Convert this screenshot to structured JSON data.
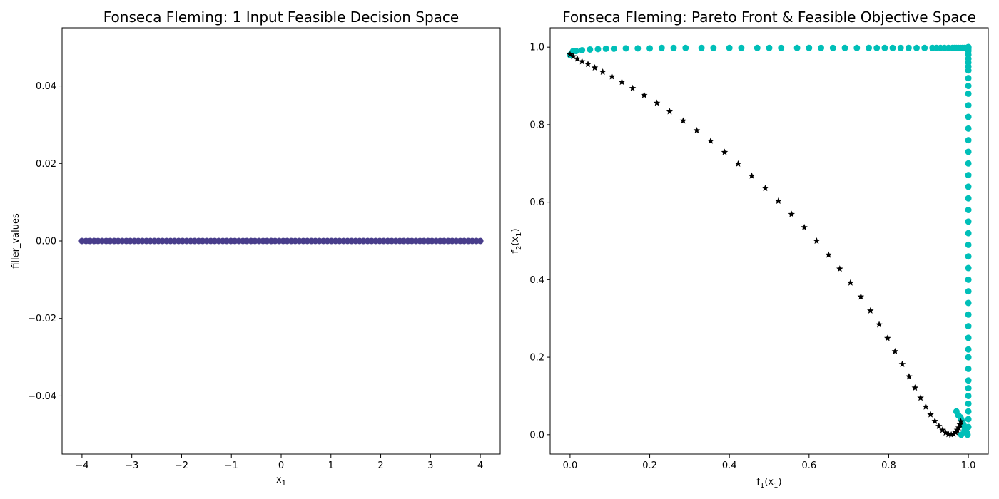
{
  "chart_data": [
    {
      "type": "scatter",
      "title": "Fonseca Fleming: 1 Input Feasible Decision Space",
      "xlabel": "x",
      "xlabel_sub": "1",
      "ylabel": "filler_values",
      "xlim": [
        -4.4,
        4.4
      ],
      "ylim": [
        -0.055,
        0.055
      ],
      "xticks": [
        -4,
        -3,
        -2,
        -1,
        0,
        1,
        2,
        3,
        4
      ],
      "xtick_labels": [
        "−4",
        "−3",
        "−2",
        "−1",
        "0",
        "1",
        "2",
        "3",
        "4"
      ],
      "yticks": [
        0.04,
        0.02,
        0.0,
        -0.02,
        -0.04
      ],
      "ytick_labels": [
        "0.04",
        "0.02",
        "0.00",
        "−0.02",
        "−0.04"
      ],
      "grid": false,
      "series": [
        {
          "color": "#483d8b",
          "marker": "circle",
          "x_range": [
            -4,
            4
          ],
          "count": 100,
          "y_value": 0
        }
      ]
    },
    {
      "type": "scatter",
      "title": "Fonseca Fleming: Pareto Front & Feasible Objective Space",
      "xlabel": "f",
      "xlabel_sub": "1",
      "xlabel_arg": "(x",
      "xlabel_argsub": "1",
      "xlabel_end": ")",
      "ylabel": "f",
      "ylabel_sub": "2",
      "ylabel_arg": "(x",
      "ylabel_argsub": "1",
      "ylabel_end": ")",
      "xlim": [
        -0.05,
        1.05
      ],
      "ylim": [
        -0.05,
        1.05
      ],
      "xticks": [
        0.0,
        0.2,
        0.4,
        0.6,
        0.8,
        1.0
      ],
      "xtick_labels": [
        "0.0",
        "0.2",
        "0.4",
        "0.6",
        "0.8",
        "1.0"
      ],
      "yticks": [
        0.0,
        0.2,
        0.4,
        0.6,
        0.8,
        1.0
      ],
      "ytick_labels": [
        "0.0",
        "0.2",
        "0.4",
        "0.6",
        "0.8",
        "1.0"
      ],
      "grid": false,
      "series": [
        {
          "color": "#00bfb8",
          "marker": "circle",
          "x": [
            0.982,
            0.99,
            1.0,
            1.0,
            1.0,
            1.0,
            1.0,
            1.0,
            1.0,
            1.0,
            1.0,
            1.0,
            1.0,
            1.0,
            1.0,
            1.0,
            1.0,
            1.0,
            1.0,
            1.0,
            1.0,
            1.0,
            1.0,
            1.0,
            1.0,
            1.0,
            1.0,
            1.0,
            1.0,
            1.0,
            1.0,
            1.0,
            1.0,
            1.0,
            1.0,
            1.0,
            1.0,
            1.0,
            1.0,
            1.0,
            1.0,
            1.0,
            1.0,
            1.0,
            1.0,
            1.0,
            0.998,
            0.996,
            0.994,
            0.992,
            0.99,
            0.988,
            0.986,
            0.984,
            0.982,
            0.98,
            0.975,
            0.97,
            0.0,
            0.004,
            0.008,
            0.015,
            0.03,
            0.05,
            0.07,
            0.09,
            0.11,
            0.14,
            0.17,
            0.2,
            0.23,
            0.26,
            0.29,
            0.33,
            0.36,
            0.4,
            0.43,
            0.47,
            0.5,
            0.53,
            0.57,
            0.6,
            0.63,
            0.66,
            0.69,
            0.72,
            0.75,
            0.77,
            0.79,
            0.81,
            0.83,
            0.85,
            0.87,
            0.89,
            0.91,
            0.92,
            0.93,
            0.94,
            0.95,
            0.96,
            0.965,
            0.97,
            0.975,
            0.98,
            0.985,
            0.99,
            0.995
          ],
          "y": [
            0.0,
            0.01,
            0.02,
            0.04,
            0.06,
            0.08,
            0.1,
            0.12,
            0.14,
            0.17,
            0.2,
            0.22,
            0.25,
            0.28,
            0.31,
            0.34,
            0.37,
            0.4,
            0.43,
            0.46,
            0.49,
            0.52,
            0.55,
            0.58,
            0.61,
            0.64,
            0.67,
            0.7,
            0.73,
            0.76,
            0.79,
            0.82,
            0.85,
            0.88,
            0.9,
            0.92,
            0.94,
            0.95,
            0.96,
            0.97,
            0.98,
            0.99,
            0.995,
            1.0,
            1.0,
            1.0,
            0.0,
            0.005,
            0.01,
            0.015,
            0.02,
            0.025,
            0.03,
            0.035,
            0.04,
            0.045,
            0.05,
            0.06,
            0.98,
            0.985,
            0.99,
            0.99,
            0.992,
            0.994,
            0.995,
            0.996,
            0.996,
            0.997,
            0.997,
            0.997,
            0.998,
            0.998,
            0.998,
            0.998,
            0.998,
            0.998,
            0.998,
            0.998,
            0.998,
            0.998,
            0.998,
            0.998,
            0.998,
            0.998,
            0.998,
            0.998,
            0.998,
            0.998,
            0.998,
            0.998,
            0.998,
            0.998,
            0.998,
            0.998,
            0.998,
            0.998,
            0.998,
            0.998,
            0.998,
            0.998,
            0.998,
            0.998,
            0.998,
            0.998,
            0.998,
            0.998,
            0.998
          ]
        },
        {
          "color": "#000000",
          "marker": "star",
          "x": [
            0.0,
            0.008,
            0.018,
            0.03,
            0.045,
            0.062,
            0.082,
            0.105,
            0.13,
            0.157,
            0.186,
            0.218,
            0.25,
            0.284,
            0.318,
            0.353,
            0.388,
            0.422,
            0.456,
            0.49,
            0.523,
            0.556,
            0.588,
            0.619,
            0.649,
            0.677,
            0.704,
            0.73,
            0.754,
            0.776,
            0.797,
            0.816,
            0.834,
            0.851,
            0.866,
            0.88,
            0.893,
            0.905,
            0.916,
            0.926,
            0.935,
            0.943,
            0.95,
            0.957,
            0.963,
            0.968,
            0.972,
            0.976,
            0.979,
            0.981
          ],
          "y": [
            0.981,
            0.976,
            0.97,
            0.963,
            0.956,
            0.947,
            0.936,
            0.924,
            0.91,
            0.894,
            0.876,
            0.856,
            0.834,
            0.81,
            0.785,
            0.758,
            0.729,
            0.699,
            0.668,
            0.636,
            0.603,
            0.569,
            0.535,
            0.5,
            0.464,
            0.428,
            0.392,
            0.356,
            0.32,
            0.284,
            0.249,
            0.215,
            0.182,
            0.15,
            0.121,
            0.095,
            0.072,
            0.052,
            0.035,
            0.022,
            0.012,
            0.005,
            0.001,
            0.0,
            0.002,
            0.006,
            0.012,
            0.018,
            0.026,
            0.034
          ]
        }
      ]
    }
  ]
}
